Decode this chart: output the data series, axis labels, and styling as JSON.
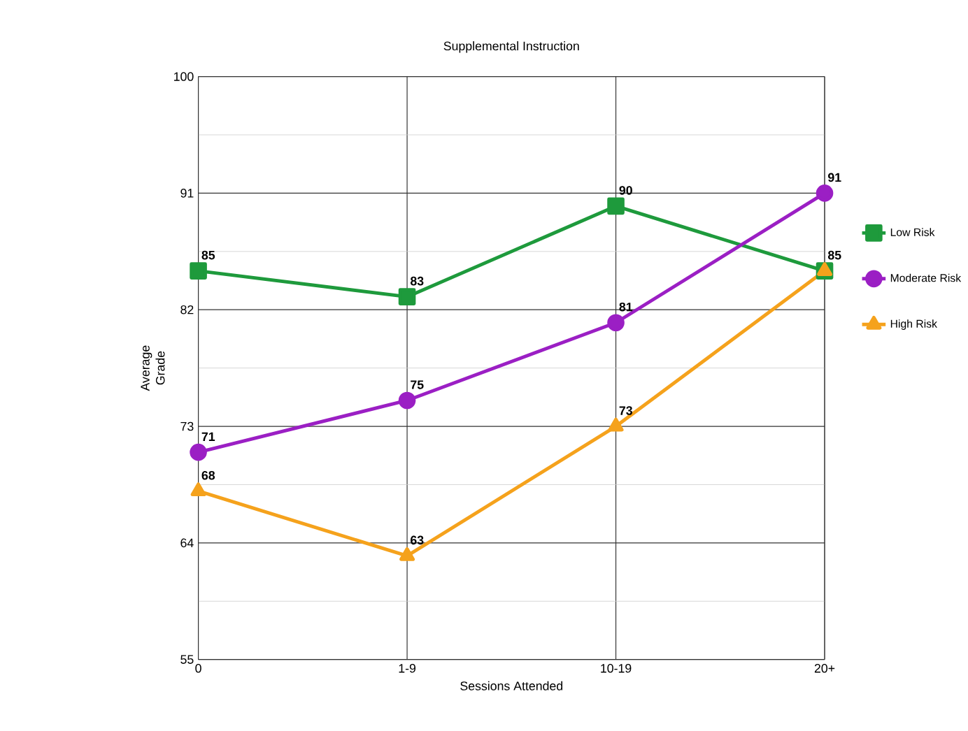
{
  "chart_data": {
    "type": "line",
    "title": "Supplemental Instruction",
    "xlabel": "Sessions Attended",
    "ylabel": "Average Grade",
    "categories": [
      "0",
      "1-9",
      "10-19",
      "20+"
    ],
    "series": [
      {
        "name": "Low Risk",
        "color": "#1e9a3c",
        "marker": "square",
        "values": [
          85,
          83,
          90,
          85
        ],
        "value_labels": [
          "85",
          "83",
          "90",
          "85"
        ]
      },
      {
        "name": "Moderate Risk",
        "color": "#9b1fc4",
        "marker": "circle",
        "values": [
          71,
          75,
          81,
          91
        ],
        "value_labels": [
          "71",
          "75",
          "81",
          "91"
        ]
      },
      {
        "name": "High Risk",
        "color": "#f5a21c",
        "marker": "triangle",
        "values": [
          68,
          63,
          73,
          85
        ],
        "value_labels": [
          "68",
          "63",
          "73",
          null
        ]
      }
    ],
    "ylim": [
      55,
      100
    ],
    "yticks": [
      55,
      64,
      73,
      82,
      91,
      100
    ],
    "grid": true,
    "legend": "right"
  }
}
